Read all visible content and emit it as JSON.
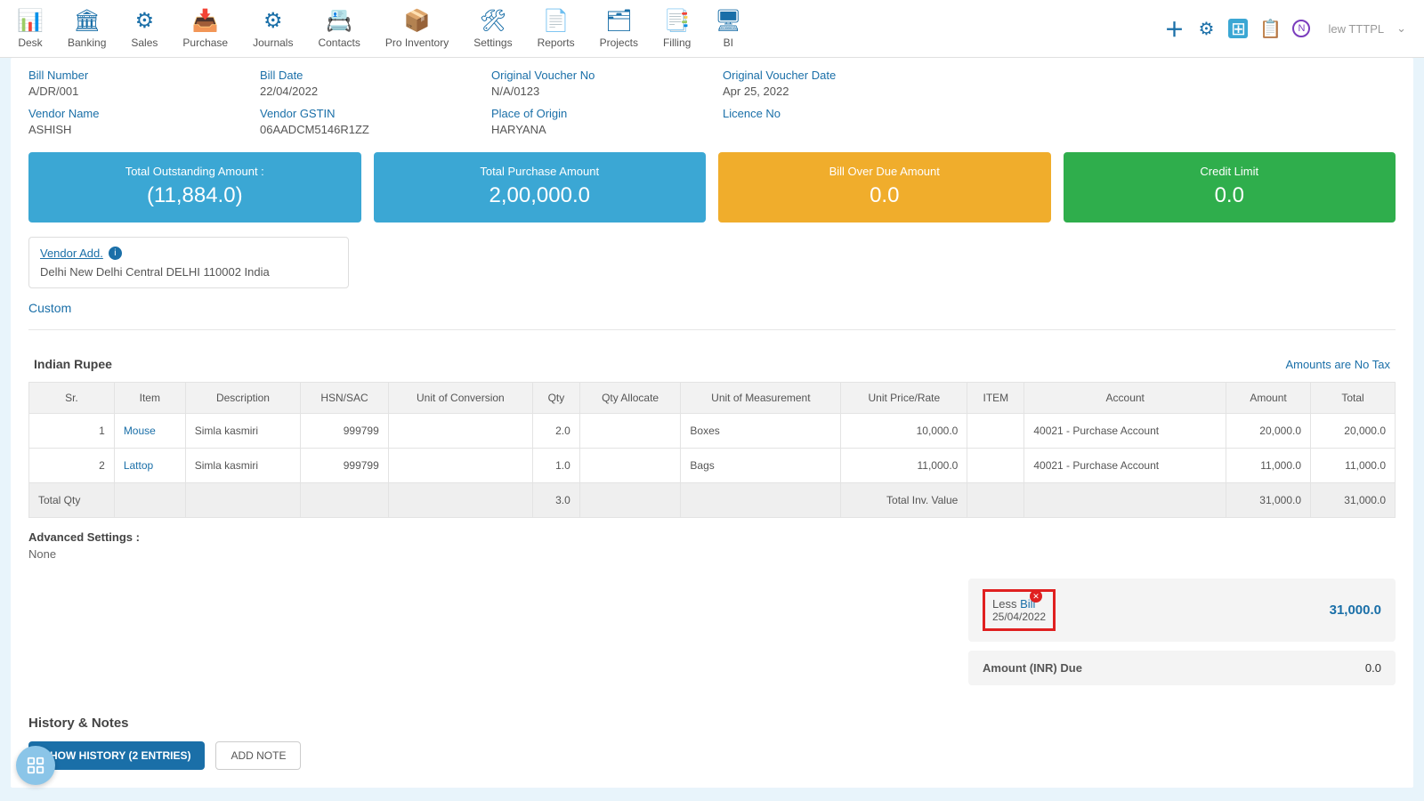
{
  "nav": [
    {
      "label": "Desk",
      "icon": "📊"
    },
    {
      "label": "Banking",
      "icon": "🏛"
    },
    {
      "label": "Sales",
      "icon": "⚙"
    },
    {
      "label": "Purchase",
      "icon": "📥"
    },
    {
      "label": "Journals",
      "icon": "⚙"
    },
    {
      "label": "Contacts",
      "icon": "📇"
    },
    {
      "label": "Pro Inventory",
      "icon": "📦"
    },
    {
      "label": "Settings",
      "icon": "🛠"
    },
    {
      "label": "Reports",
      "icon": "📄"
    },
    {
      "label": "Projects",
      "icon": "🗂"
    },
    {
      "label": "Filling",
      "icon": "📑"
    },
    {
      "label": "BI",
      "icon": "🖥"
    }
  ],
  "user": {
    "label": "lew TTTPL"
  },
  "info": {
    "bill_number": {
      "label": "Bill Number",
      "value": "A/DR/001"
    },
    "bill_date": {
      "label": "Bill Date",
      "value": "22/04/2022"
    },
    "orig_voucher_no": {
      "label": "Original Voucher No",
      "value": "N/A/0123"
    },
    "orig_voucher_date": {
      "label": "Original Voucher Date",
      "value": "Apr 25, 2022"
    },
    "vendor_name": {
      "label": "Vendor Name",
      "value": "ASHISH"
    },
    "vendor_gstin": {
      "label": "Vendor GSTIN",
      "value": "06AADCM5146R1ZZ"
    },
    "place_origin": {
      "label": "Place of Origin",
      "value": "HARYANA"
    },
    "licence_no": {
      "label": "Licence No",
      "value": ""
    }
  },
  "summary": {
    "outstanding": {
      "label": "Total Outstanding Amount :",
      "value": "(11,884.0)",
      "color": "#3ba7d4"
    },
    "purchase": {
      "label": "Total Purchase Amount",
      "value": "2,00,000.0",
      "color": "#3ba7d4"
    },
    "overdue": {
      "label": "Bill Over Due Amount",
      "value": "0.0",
      "color": "#f0ad2c"
    },
    "credit": {
      "label": "Credit Limit",
      "value": "0.0",
      "color": "#2fae4c"
    }
  },
  "vendor_add": {
    "title": "Vendor Add.",
    "address": "Delhi New Delhi Central DELHI 110002 India"
  },
  "custom_link": "Custom",
  "currency_label": "Indian Rupee",
  "tax_note": "Amounts are No Tax",
  "table": {
    "headers": [
      "Sr.",
      "Item",
      "Description",
      "HSN/SAC",
      "Unit of Conversion",
      "Qty",
      "Qty Allocate",
      "Unit of Measurement",
      "Unit Price/Rate",
      "ITEM",
      "Account",
      "Amount",
      "Total"
    ],
    "rows": [
      {
        "sr": "1",
        "item": "Mouse",
        "desc": "Simla kasmiri",
        "hsn": "999799",
        "uoc": "",
        "qty": "2.0",
        "qalloc": "",
        "uom": "Boxes",
        "rate": "10,000.0",
        "itemcol": "",
        "account": "40021 - Purchase Account",
        "amount": "20,000.0",
        "total": "20,000.0"
      },
      {
        "sr": "2",
        "item": "Lattop",
        "desc": "Simla kasmiri",
        "hsn": "999799",
        "uoc": "",
        "qty": "1.0",
        "qalloc": "",
        "uom": "Bags",
        "rate": "11,000.0",
        "itemcol": "",
        "account": "40021 - Purchase Account",
        "amount": "11,000.0",
        "total": "11,000.0"
      }
    ],
    "total_row": {
      "label": "Total Qty",
      "qty": "3.0",
      "inv_label": "Total Inv. Value",
      "amount": "31,000.0",
      "total": "31,000.0"
    }
  },
  "adv_settings": {
    "title": "Advanced Settings :",
    "value": "None"
  },
  "less_bill": {
    "less_text": "Less ",
    "link": "Bill",
    "date": "25/04/2022",
    "amount": "31,000.0"
  },
  "amount_due": {
    "label": "Amount (INR) Due",
    "value": "0.0"
  },
  "history": {
    "title": "History & Notes",
    "show_button": "SHOW HISTORY (2 ENTRIES)",
    "add_button": "ADD NOTE"
  }
}
